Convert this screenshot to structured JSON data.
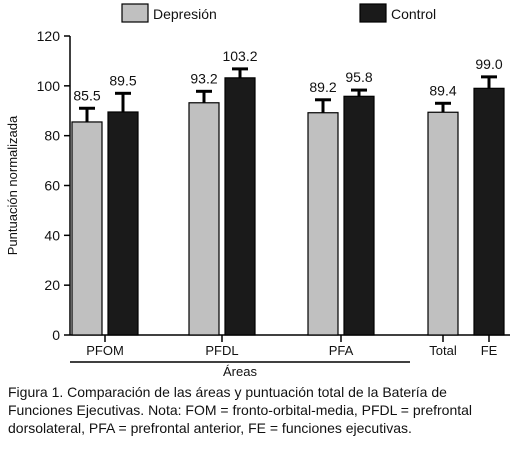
{
  "chart_data": {
    "type": "bar",
    "categories": [
      "PFOM",
      "PFDL",
      "PFA",
      "Total",
      "FE"
    ],
    "group_label": "Áreas",
    "ylabel": "Puntuación normalizada",
    "ylim": [
      0,
      120
    ],
    "yticks": [
      0,
      20,
      40,
      60,
      80,
      100,
      120
    ],
    "legend_position": "top",
    "series": [
      {
        "name": "Depresión",
        "color": "#c0c0c0",
        "values": [
          85.5,
          93.2,
          89.2,
          89.4,
          null
        ],
        "error": [
          5.5,
          4.6,
          5.2,
          3.6,
          null
        ],
        "labels": [
          "85.5",
          "93.2",
          "89.2",
          "89.4",
          ""
        ]
      },
      {
        "name": "Control",
        "color": "#1a1a1a",
        "values": [
          89.5,
          103.2,
          95.8,
          null,
          99.0
        ],
        "error": [
          7.5,
          3.6,
          2.5,
          null,
          4.6
        ],
        "labels": [
          "89.5",
          "103.2",
          "95.8",
          "",
          "99.0"
        ]
      }
    ]
  },
  "caption": {
    "lead": "Figura 1.",
    "text": " Comparación de las áreas y puntuación total de la Batería de Funciones Ejecutivas. Nota: FOM = fronto-orbital-media,  PFDL = prefrontal dorsolateral, PFA = prefrontal anterior, FE = funciones ejecutivas."
  }
}
